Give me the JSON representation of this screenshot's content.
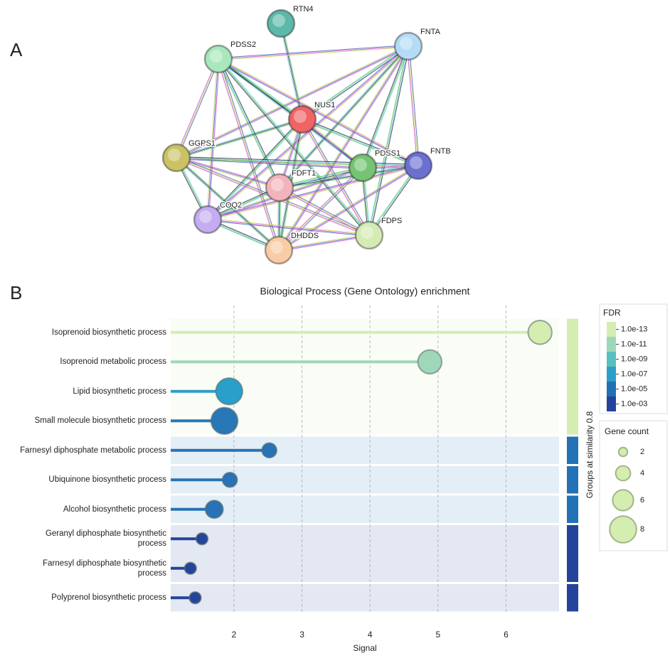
{
  "panel_labels": [
    "A",
    "B"
  ],
  "network": {
    "nodes": [
      {
        "label": "RTN4",
        "color": "#5cb8a8"
      },
      {
        "label": "FNTA",
        "color": "#b4dcf6"
      },
      {
        "label": "PDSS2",
        "color": "#a8e8bc"
      },
      {
        "label": "NUS1",
        "color": "#f06464"
      },
      {
        "label": "GGPS1",
        "color": "#cac264"
      },
      {
        "label": "PDSS1",
        "color": "#74c474"
      },
      {
        "label": "FNTB",
        "color": "#6c70d0"
      },
      {
        "label": "FDFT1",
        "color": "#f2b4bc"
      },
      {
        "label": "COQ2",
        "color": "#c4acf2"
      },
      {
        "label": "FDPS",
        "color": "#d4ecb4"
      },
      {
        "label": "DHDDS",
        "color": "#f8cca4"
      }
    ]
  },
  "chart_data": {
    "type": "lollipop",
    "title": "Biological Process (Gene Ontology) enrichment",
    "xlabel": "Signal",
    "categories": [
      "Isoprenoid biosynthetic process",
      "Isoprenoid metabolic process",
      "Lipid biosynthetic process",
      "Small molecule biosynthetic process",
      "Farnesyl diphosphate metabolic process",
      "Ubiquinone biosynthetic process",
      "Alcohol biosynthetic process",
      "Geranyl diphosphate biosynthetic process",
      "Farnesyl diphosphate biosynthetic process",
      "Polyprenol biosynthetic process"
    ],
    "values": [
      6.5,
      4.88,
      1.93,
      1.86,
      2.52,
      1.94,
      1.71,
      1.53,
      1.36,
      1.43
    ],
    "gene_count": [
      7,
      7,
      8,
      8,
      4,
      4,
      5,
      3,
      3,
      3
    ],
    "colors": [
      "#d4edb0",
      "#9fd7b9",
      "#2a9fc9",
      "#2878b8",
      "#2872b5",
      "#2872b5",
      "#2872b5",
      "#24449c",
      "#24449c",
      "#24449c"
    ],
    "xlim": [
      1.07,
      6.78
    ],
    "xticks": [
      2,
      3,
      4,
      5,
      6
    ],
    "grid": true,
    "group_label": "Groups at similarity 0.8",
    "groups": [
      {
        "rows": [
          0,
          3
        ],
        "color": "#d4edb0"
      },
      {
        "rows": [
          4,
          4
        ],
        "color": "#2372b5"
      },
      {
        "rows": [
          5,
          5
        ],
        "color": "#2372b5"
      },
      {
        "rows": [
          6,
          6
        ],
        "color": "#2372b5"
      },
      {
        "rows": [
          7,
          8
        ],
        "color": "#24449c"
      },
      {
        "rows": [
          9,
          9
        ],
        "color": "#24449c"
      }
    ],
    "fdr_legend": {
      "title": "FDR",
      "ticks": [
        {
          "value": 1e-13,
          "label": "1.0e-13"
        },
        {
          "value": 1e-11,
          "label": "1.0e-11"
        },
        {
          "value": 1e-09,
          "label": "1.0e-09"
        },
        {
          "value": 1e-07,
          "label": "1.0e-07"
        },
        {
          "value": 1e-05,
          "label": "1.0e-05"
        },
        {
          "value": 0.001,
          "label": "1.0e-03"
        }
      ],
      "colors": [
        "#d4edb0",
        "#9fd7b9",
        "#5abfbf",
        "#2c9fc8",
        "#2271b4",
        "#24439c"
      ]
    },
    "size_legend": {
      "title": "Gene count",
      "values": [
        2,
        4,
        6,
        8
      ]
    }
  }
}
